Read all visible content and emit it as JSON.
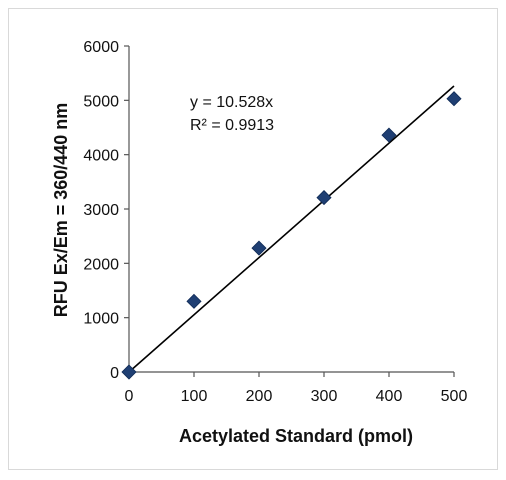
{
  "chart_data": {
    "type": "scatter",
    "xlabel": "Acetylated Standard (pmol)",
    "ylabel": "RFU Ex/Em = 360/440 nm",
    "xlim": [
      0,
      500
    ],
    "ylim": [
      0,
      6000
    ],
    "xticks": [
      0,
      100,
      200,
      300,
      400,
      500
    ],
    "yticks": [
      0,
      1000,
      2000,
      3000,
      4000,
      5000,
      6000
    ],
    "grid": false,
    "marker": "diamond",
    "marker_color": "#1f3f73",
    "points": [
      {
        "x": 0,
        "y": 0
      },
      {
        "x": 100,
        "y": 1300
      },
      {
        "x": 200,
        "y": 2280
      },
      {
        "x": 300,
        "y": 3210
      },
      {
        "x": 400,
        "y": 4360
      },
      {
        "x": 500,
        "y": 5030
      }
    ],
    "trendline": {
      "slope": 10.528,
      "intercept": 0,
      "x_range": [
        0,
        500
      ],
      "color": "#000000",
      "equation": "y = 10.528x",
      "r_squared": "R² = 0.9913"
    }
  }
}
